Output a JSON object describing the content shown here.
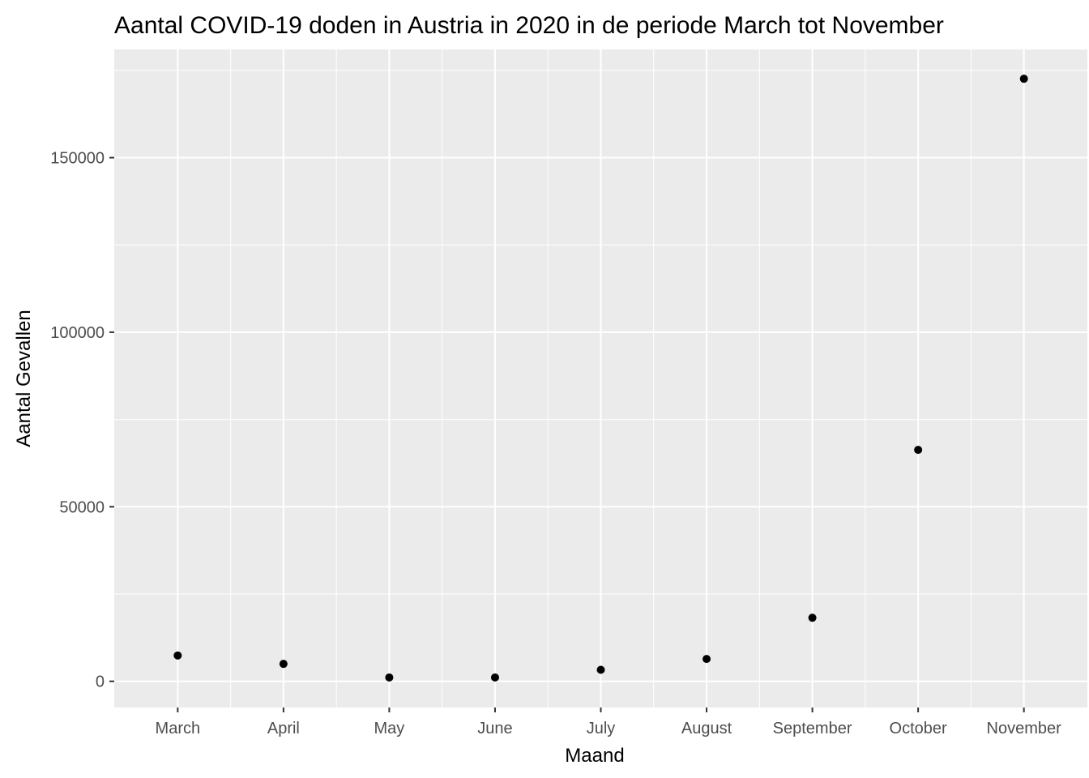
{
  "chart_data": {
    "type": "scatter",
    "title": "Aantal COVID-19 doden in Austria in 2020 in de periode March tot November",
    "xlabel": "Maand",
    "ylabel": "Aantal Gevallen",
    "categories": [
      "March",
      "April",
      "May",
      "June",
      "July",
      "August",
      "September",
      "October",
      "November"
    ],
    "values": [
      7400,
      5000,
      1100,
      1100,
      3300,
      6400,
      18200,
      66300,
      172600
    ],
    "yticks": [
      0,
      50000,
      100000,
      150000
    ],
    "ytick_labels": [
      "0",
      "50000",
      "100000",
      "150000"
    ],
    "ylim": [
      -7500,
      181000
    ],
    "grid": true,
    "legend": "none",
    "colors": {
      "panel": "#ebebeb",
      "grid": "#ffffff",
      "point": "#000000",
      "tick_label": "#4d4d4d"
    }
  }
}
